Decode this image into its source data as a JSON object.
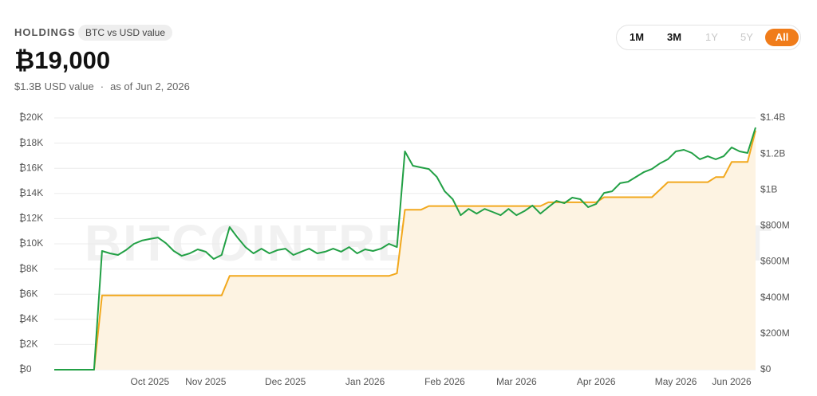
{
  "header": {
    "title": "HOLDINGS",
    "badge": "BTC vs USD value",
    "headline": "₿19,000",
    "usd_value": "$1.3B USD value",
    "separator": "·",
    "as_of": "as of Jun 2, 2026"
  },
  "range_buttons": [
    "1M",
    "3M",
    "1Y",
    "5Y",
    "All"
  ],
  "chart_data": {
    "type": "line",
    "watermark": "BITCOINTREASURIES.NET",
    "categories": [
      null,
      null,
      null,
      null,
      null,
      null,
      null,
      null,
      null,
      null,
      null,
      null,
      "Oct 2025",
      null,
      null,
      null,
      null,
      null,
      null,
      "Nov 2025",
      null,
      null,
      null,
      null,
      null,
      null,
      null,
      null,
      null,
      "Dec 2025",
      null,
      null,
      null,
      null,
      null,
      null,
      null,
      null,
      null,
      "Jan 2026",
      null,
      null,
      null,
      null,
      null,
      null,
      null,
      null,
      null,
      "Feb 2026",
      null,
      null,
      null,
      null,
      null,
      null,
      null,
      null,
      "Mar 2026",
      null,
      null,
      null,
      null,
      null,
      null,
      null,
      null,
      null,
      "Apr 2026",
      null,
      null,
      null,
      null,
      null,
      null,
      null,
      null,
      null,
      "May 2026",
      null,
      null,
      null,
      null,
      null,
      null,
      "Jun 2026",
      null,
      null,
      null
    ],
    "series": [
      {
        "color": "#f2a81d",
        "fill": "#fdf3e2",
        "axis": "y",
        "values": [
          0,
          0,
          0,
          0,
          0,
          0,
          5900,
          5900,
          5900,
          5900,
          5900,
          5900,
          5900,
          5900,
          5900,
          5900,
          5900,
          5900,
          5900,
          5900,
          5900,
          5900,
          7450,
          7450,
          7450,
          7450,
          7450,
          7450,
          7450,
          7450,
          7450,
          7450,
          7450,
          7450,
          7450,
          7450,
          7450,
          7450,
          7450,
          7450,
          7450,
          7450,
          7450,
          7650,
          12700,
          12700,
          12700,
          13000,
          13000,
          13000,
          13000,
          13000,
          13000,
          13000,
          13000,
          13000,
          13000,
          13000,
          13000,
          13000,
          13000,
          13000,
          13300,
          13300,
          13300,
          13300,
          13300,
          13300,
          13300,
          13700,
          13700,
          13700,
          13700,
          13700,
          13700,
          13700,
          14300,
          14900,
          14900,
          14900,
          14900,
          14900,
          14900,
          15300,
          15300,
          16500,
          16500,
          16500,
          19000
        ]
      },
      {
        "color": "#22a045",
        "axis": "y2",
        "values": [
          0,
          0,
          0,
          0,
          0,
          0,
          660000000,
          647000000,
          638000000,
          665000000,
          700000000,
          718000000,
          727000000,
          735000000,
          704000000,
          660000000,
          633000000,
          647000000,
          669000000,
          656000000,
          616000000,
          638000000,
          793000000,
          735000000,
          682000000,
          647000000,
          673000000,
          647000000,
          665000000,
          673000000,
          638000000,
          656000000,
          673000000,
          647000000,
          656000000,
          673000000,
          656000000,
          682000000,
          647000000,
          669000000,
          660000000,
          673000000,
          700000000,
          682000000,
          1214000000,
          1134000000,
          1125000000,
          1116000000,
          1072000000,
          992000000,
          948000000,
          859000000,
          894000000,
          868000000,
          894000000,
          877000000,
          859000000,
          894000000,
          859000000,
          882000000,
          913000000,
          868000000,
          904000000,
          939000000,
          926000000,
          957000000,
          948000000,
          904000000,
          922000000,
          983000000,
          992000000,
          1037000000,
          1045000000,
          1072000000,
          1099000000,
          1116000000,
          1147000000,
          1170000000,
          1214000000,
          1223000000,
          1205000000,
          1170000000,
          1187000000,
          1170000000,
          1187000000,
          1236000000,
          1214000000,
          1205000000,
          1347000000
        ]
      }
    ],
    "ylim": [
      0,
      20000
    ],
    "yticks": [
      {
        "value": 0,
        "label": "₿0"
      },
      {
        "value": 2000,
        "label": "₿2K"
      },
      {
        "value": 4000,
        "label": "₿4K"
      },
      {
        "value": 6000,
        "label": "₿6K"
      },
      {
        "value": 8000,
        "label": "₿8K"
      },
      {
        "value": 10000,
        "label": "₿10K"
      },
      {
        "value": 12000,
        "label": "₿12K"
      },
      {
        "value": 14000,
        "label": "₿14K"
      },
      {
        "value": 16000,
        "label": "₿16K"
      },
      {
        "value": 18000,
        "label": "₿18K"
      },
      {
        "value": 20000,
        "label": "₿20K"
      }
    ],
    "y2lim": [
      0,
      1400000000
    ],
    "y2ticks": [
      {
        "value": 0,
        "label": "$0"
      },
      {
        "value": 200000000,
        "label": "$200M"
      },
      {
        "value": 400000000,
        "label": "$400M"
      },
      {
        "value": 600000000,
        "label": "$600M"
      },
      {
        "value": 800000000,
        "label": "$800M"
      },
      {
        "value": 1000000000,
        "label": "$1B"
      },
      {
        "value": 1200000000,
        "label": "$1.2B"
      },
      {
        "value": 1400000000,
        "label": "$1.4B"
      }
    ],
    "grid": true
  }
}
